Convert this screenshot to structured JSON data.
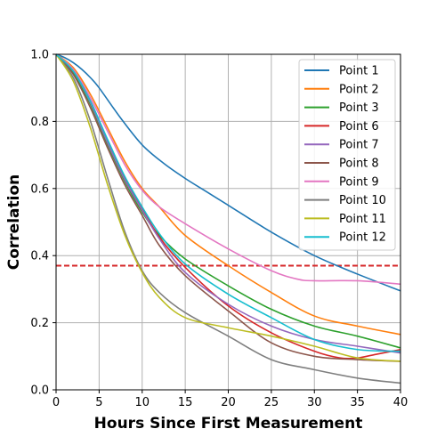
{
  "chart_data": {
    "type": "line",
    "title": "",
    "xlabel": "Hours Since First Measurement",
    "ylabel": "Correlation",
    "xlim": [
      0,
      40
    ],
    "ylim": [
      0.0,
      1.0
    ],
    "xticks": [
      "0",
      "5",
      "10",
      "15",
      "20",
      "25",
      "30",
      "35",
      "40"
    ],
    "yticks": [
      "0.0",
      "0.2",
      "0.4",
      "0.6",
      "0.8",
      "1.0"
    ],
    "grid": true,
    "legend_position": "upper-right",
    "reference_line": {
      "y": 0.37,
      "style": "dashed",
      "color": "#d62728"
    },
    "series": [
      {
        "name": "Point 1",
        "color": "#1f77b4",
        "points": [
          [
            0,
            1.0
          ],
          [
            1,
            0.99
          ],
          [
            2,
            0.975
          ],
          [
            3,
            0.955
          ],
          [
            4,
            0.93
          ],
          [
            5,
            0.9
          ],
          [
            7.5,
            0.81
          ],
          [
            10,
            0.73
          ],
          [
            12.5,
            0.675
          ],
          [
            15,
            0.63
          ],
          [
            17.5,
            0.59
          ],
          [
            20,
            0.55
          ],
          [
            25,
            0.47
          ],
          [
            30,
            0.4
          ],
          [
            35,
            0.345
          ],
          [
            40,
            0.295
          ]
        ]
      },
      {
        "name": "Point 2",
        "color": "#ff7f0e",
        "points": [
          [
            0,
            1.0
          ],
          [
            2,
            0.96
          ],
          [
            4,
            0.88
          ],
          [
            6,
            0.78
          ],
          [
            8,
            0.68
          ],
          [
            10,
            0.6
          ],
          [
            12,
            0.545
          ],
          [
            15,
            0.46
          ],
          [
            20,
            0.37
          ],
          [
            25,
            0.29
          ],
          [
            30,
            0.22
          ],
          [
            35,
            0.19
          ],
          [
            40,
            0.165
          ]
        ]
      },
      {
        "name": "Point 3",
        "color": "#2ca02c",
        "points": [
          [
            0,
            1.0
          ],
          [
            2,
            0.945
          ],
          [
            4,
            0.85
          ],
          [
            6,
            0.73
          ],
          [
            8,
            0.62
          ],
          [
            10,
            0.53
          ],
          [
            12,
            0.46
          ],
          [
            15,
            0.39
          ],
          [
            20,
            0.31
          ],
          [
            25,
            0.24
          ],
          [
            30,
            0.19
          ],
          [
            35,
            0.16
          ],
          [
            40,
            0.125
          ]
        ]
      },
      {
        "name": "Point 6",
        "color": "#d62728",
        "points": [
          [
            0,
            1.0
          ],
          [
            2,
            0.95
          ],
          [
            4,
            0.86
          ],
          [
            6,
            0.74
          ],
          [
            8,
            0.63
          ],
          [
            10,
            0.54
          ],
          [
            12,
            0.455
          ],
          [
            15,
            0.365
          ],
          [
            20,
            0.25
          ],
          [
            25,
            0.17
          ],
          [
            30,
            0.115
          ],
          [
            33,
            0.095
          ],
          [
            35,
            0.095
          ],
          [
            37,
            0.105
          ],
          [
            40,
            0.12
          ]
        ]
      },
      {
        "name": "Point 7",
        "color": "#9467bd",
        "points": [
          [
            0,
            1.0
          ],
          [
            2,
            0.95
          ],
          [
            4,
            0.855
          ],
          [
            6,
            0.735
          ],
          [
            8,
            0.625
          ],
          [
            10,
            0.535
          ],
          [
            12,
            0.45
          ],
          [
            15,
            0.35
          ],
          [
            20,
            0.255
          ],
          [
            25,
            0.19
          ],
          [
            30,
            0.15
          ],
          [
            35,
            0.13
          ],
          [
            40,
            0.11
          ]
        ]
      },
      {
        "name": "Point 8",
        "color": "#8c564b",
        "points": [
          [
            0,
            1.0
          ],
          [
            2,
            0.94
          ],
          [
            4,
            0.84
          ],
          [
            6,
            0.72
          ],
          [
            8,
            0.61
          ],
          [
            10,
            0.52
          ],
          [
            12,
            0.43
          ],
          [
            15,
            0.34
          ],
          [
            20,
            0.235
          ],
          [
            25,
            0.14
          ],
          [
            30,
            0.1
          ],
          [
            35,
            0.09
          ],
          [
            40,
            0.085
          ]
        ]
      },
      {
        "name": "Point 9",
        "color": "#e377c2",
        "points": [
          [
            0,
            1.0
          ],
          [
            2,
            0.955
          ],
          [
            4,
            0.87
          ],
          [
            6,
            0.77
          ],
          [
            8,
            0.67
          ],
          [
            10,
            0.595
          ],
          [
            12,
            0.545
          ],
          [
            15,
            0.495
          ],
          [
            20,
            0.42
          ],
          [
            25,
            0.355
          ],
          [
            28,
            0.33
          ],
          [
            30,
            0.325
          ],
          [
            35,
            0.325
          ],
          [
            40,
            0.315
          ]
        ]
      },
      {
        "name": "Point 10",
        "color": "#7f7f7f",
        "points": [
          [
            0,
            1.0
          ],
          [
            2,
            0.93
          ],
          [
            4,
            0.8
          ],
          [
            6,
            0.63
          ],
          [
            8,
            0.47
          ],
          [
            10,
            0.355
          ],
          [
            12,
            0.29
          ],
          [
            15,
            0.23
          ],
          [
            20,
            0.16
          ],
          [
            25,
            0.09
          ],
          [
            30,
            0.06
          ],
          [
            35,
            0.035
          ],
          [
            40,
            0.02
          ]
        ]
      },
      {
        "name": "Point 11",
        "color": "#bcbd22",
        "points": [
          [
            0,
            1.0
          ],
          [
            2,
            0.92
          ],
          [
            4,
            0.78
          ],
          [
            6,
            0.61
          ],
          [
            8,
            0.46
          ],
          [
            10,
            0.35
          ],
          [
            12,
            0.275
          ],
          [
            15,
            0.215
          ],
          [
            20,
            0.185
          ],
          [
            25,
            0.16
          ],
          [
            30,
            0.13
          ],
          [
            35,
            0.095
          ],
          [
            40,
            0.085
          ]
        ]
      },
      {
        "name": "Point 12",
        "color": "#17becf",
        "points": [
          [
            0,
            1.0
          ],
          [
            2,
            0.95
          ],
          [
            4,
            0.86
          ],
          [
            6,
            0.745
          ],
          [
            8,
            0.635
          ],
          [
            10,
            0.545
          ],
          [
            12,
            0.465
          ],
          [
            15,
            0.375
          ],
          [
            20,
            0.285
          ],
          [
            25,
            0.215
          ],
          [
            30,
            0.15
          ],
          [
            35,
            0.12
          ],
          [
            40,
            0.115
          ]
        ]
      }
    ]
  }
}
